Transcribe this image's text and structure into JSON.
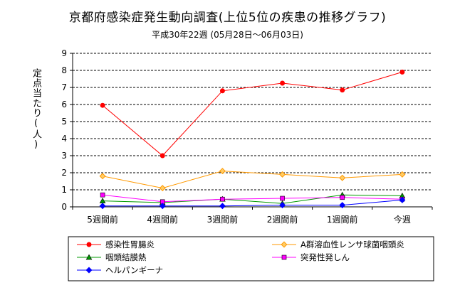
{
  "chart_data": {
    "type": "line",
    "title": "京都府感染症発生動向調査(上位5位の疾患の推移グラフ)",
    "subtitle": "平成30年22週 (05月28日～06月03日)",
    "xlabel": "",
    "ylabel": "定点当たり(人)",
    "ylim": [
      0,
      9
    ],
    "yticks": [
      "0",
      "1",
      "2",
      "3",
      "4",
      "5",
      "6",
      "7",
      "8",
      "9"
    ],
    "grid": true,
    "legend_position": "bottom",
    "categories": [
      "5週間前",
      "4週間前",
      "3週間前",
      "2週間前",
      "1週間前",
      "今週"
    ],
    "series": [
      {
        "name": "感染性胃腸炎",
        "color": "#ff0000",
        "marker": "circle",
        "values": [
          5.95,
          3.0,
          6.8,
          7.25,
          6.85,
          7.9
        ]
      },
      {
        "name": "A群溶血性レンサ球菌咽頭炎",
        "color": "#ff9900",
        "marker": "diamond",
        "values": [
          1.8,
          1.1,
          2.1,
          1.9,
          1.7,
          1.9
        ]
      },
      {
        "name": "咽頭結膜熱",
        "color": "#009900",
        "marker": "triangle",
        "values": [
          0.35,
          0.25,
          0.45,
          0.2,
          0.7,
          0.65
        ]
      },
      {
        "name": "突発性発しん",
        "color": "#ff00ff",
        "marker": "square",
        "values": [
          0.7,
          0.3,
          0.45,
          0.5,
          0.55,
          0.45
        ]
      },
      {
        "name": "ヘルパンギーナ",
        "color": "#0000ff",
        "marker": "diamond",
        "values": [
          0.05,
          0.05,
          0.05,
          0.1,
          0.1,
          0.4
        ]
      }
    ]
  }
}
